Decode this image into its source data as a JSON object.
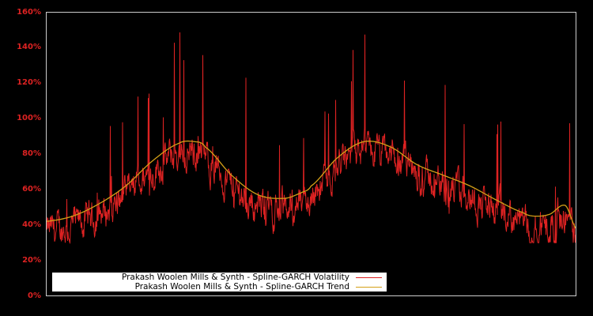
{
  "chart_data": {
    "type": "line",
    "title": "",
    "xlabel": "",
    "ylabel": "",
    "ylim": [
      0,
      160
    ],
    "y_ticks": [
      "0%",
      "20%",
      "40%",
      "60%",
      "80%",
      "100%",
      "120%",
      "140%",
      "160%"
    ],
    "grid": false,
    "legend_position": "lower-left inside plot",
    "background": "#000000",
    "axis_color": "#cccccc",
    "tick_label_color": "#dd2222",
    "series": [
      {
        "name": "Prakash Woolen Mills & Synth - Spline-GARCH Volatility",
        "color": "#dd2222",
        "x": [
          0,
          2,
          4,
          6,
          8,
          10,
          12,
          14,
          16,
          18,
          20,
          22,
          24,
          26,
          28,
          30,
          32,
          34,
          36,
          38,
          40,
          42,
          44,
          46,
          48,
          50,
          52,
          54,
          56,
          58,
          60,
          62,
          64,
          66,
          68,
          70,
          72,
          74,
          76,
          78,
          80,
          82,
          84,
          86,
          88,
          90,
          92,
          94,
          96,
          98,
          100
        ],
        "values": [
          33,
          45,
          55,
          58,
          50,
          60,
          65,
          85,
          80,
          90,
          120,
          100,
          143,
          110,
          96,
          80,
          85,
          70,
          65,
          58,
          55,
          60,
          85,
          60,
          70,
          75,
          118,
          98,
          145,
          110,
          120,
          148,
          100,
          85,
          80,
          75,
          70,
          68,
          65,
          70,
          130,
          65,
          58,
          112,
          50,
          52,
          55,
          45,
          60,
          92,
          42
        ],
        "y_unit": "%"
      },
      {
        "name": "Prakash Woolen Mills & Synth - Spline-GARCH Trend",
        "color": "#d4a017",
        "x": [
          0,
          5,
          10,
          15,
          20,
          25,
          28,
          30,
          35,
          40,
          45,
          48,
          50,
          55,
          60,
          65,
          70,
          75,
          80,
          85,
          90,
          92,
          95,
          98,
          100
        ],
        "values": [
          42,
          45,
          52,
          62,
          76,
          86,
          87,
          84,
          68,
          57,
          55,
          58,
          62,
          78,
          87,
          84,
          74,
          68,
          62,
          54,
          47,
          45,
          46,
          51,
          38
        ],
        "y_unit": "%"
      }
    ]
  },
  "legend": {
    "items": [
      {
        "label": "Prakash Woolen Mills & Synth - Spline-GARCH Volatility",
        "color": "#dd2222"
      },
      {
        "label": "Prakash Woolen Mills & Synth - Spline-GARCH Trend",
        "color": "#d4a017"
      }
    ]
  }
}
